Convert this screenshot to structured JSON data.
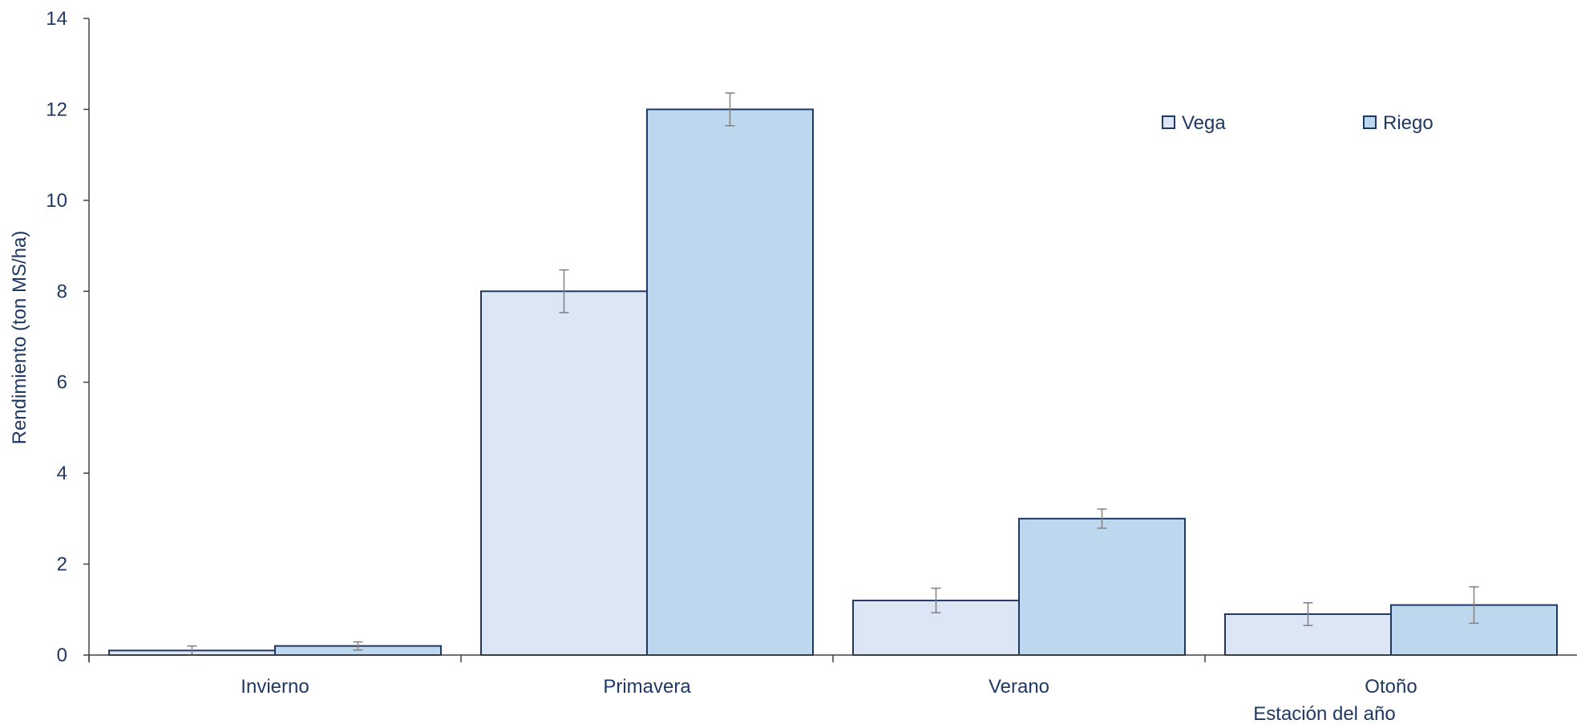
{
  "chart_data": {
    "type": "bar",
    "categories": [
      "Invierno",
      "Primavera",
      "Verano",
      "Otoño"
    ],
    "series": [
      {
        "name": "Vega",
        "values": [
          0.1,
          8.0,
          1.2,
          0.9
        ],
        "errors": [
          0.1,
          0.47,
          0.27,
          0.25
        ],
        "color": "#dce6f4"
      },
      {
        "name": "Riego",
        "values": [
          0.2,
          12.0,
          3.0,
          1.1
        ],
        "errors": [
          0.09,
          0.36,
          0.21,
          0.4
        ],
        "color": "#bdd7ee"
      }
    ],
    "xlabel": "Estación del año",
    "ylabel": "Rendimiento (ton MS/ha)",
    "ylim": [
      0,
      14
    ],
    "yticks": [
      0,
      2,
      4,
      6,
      8,
      10,
      12,
      14
    ],
    "legend_position": "top-right",
    "grid": false,
    "colors": {
      "bar_edge": "#1f3864",
      "error_bar": "#808080",
      "axis": "#404040",
      "text": "#1f3864"
    }
  }
}
